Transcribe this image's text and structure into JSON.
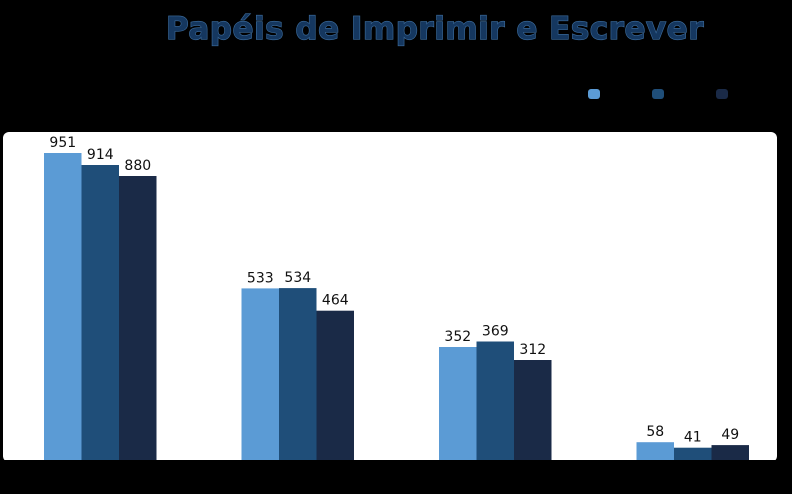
{
  "title": "Papéis de Imprimir e Escrever",
  "chart_data": {
    "type": "bar",
    "title": "Papéis de Imprimir e Escrever",
    "categories": [
      "",
      "",
      "",
      ""
    ],
    "series": [
      {
        "values": [
          951,
          533,
          352,
          58
        ],
        "color": "#5b9bd5"
      },
      {
        "values": [
          914,
          534,
          369,
          41
        ],
        "color": "#1f4e79"
      },
      {
        "values": [
          880,
          464,
          312,
          49
        ],
        "color": "#1a2a47"
      }
    ],
    "ylim": [
      0,
      1000
    ],
    "legend_position": "top-right",
    "grid": false,
    "data_labels": true
  }
}
